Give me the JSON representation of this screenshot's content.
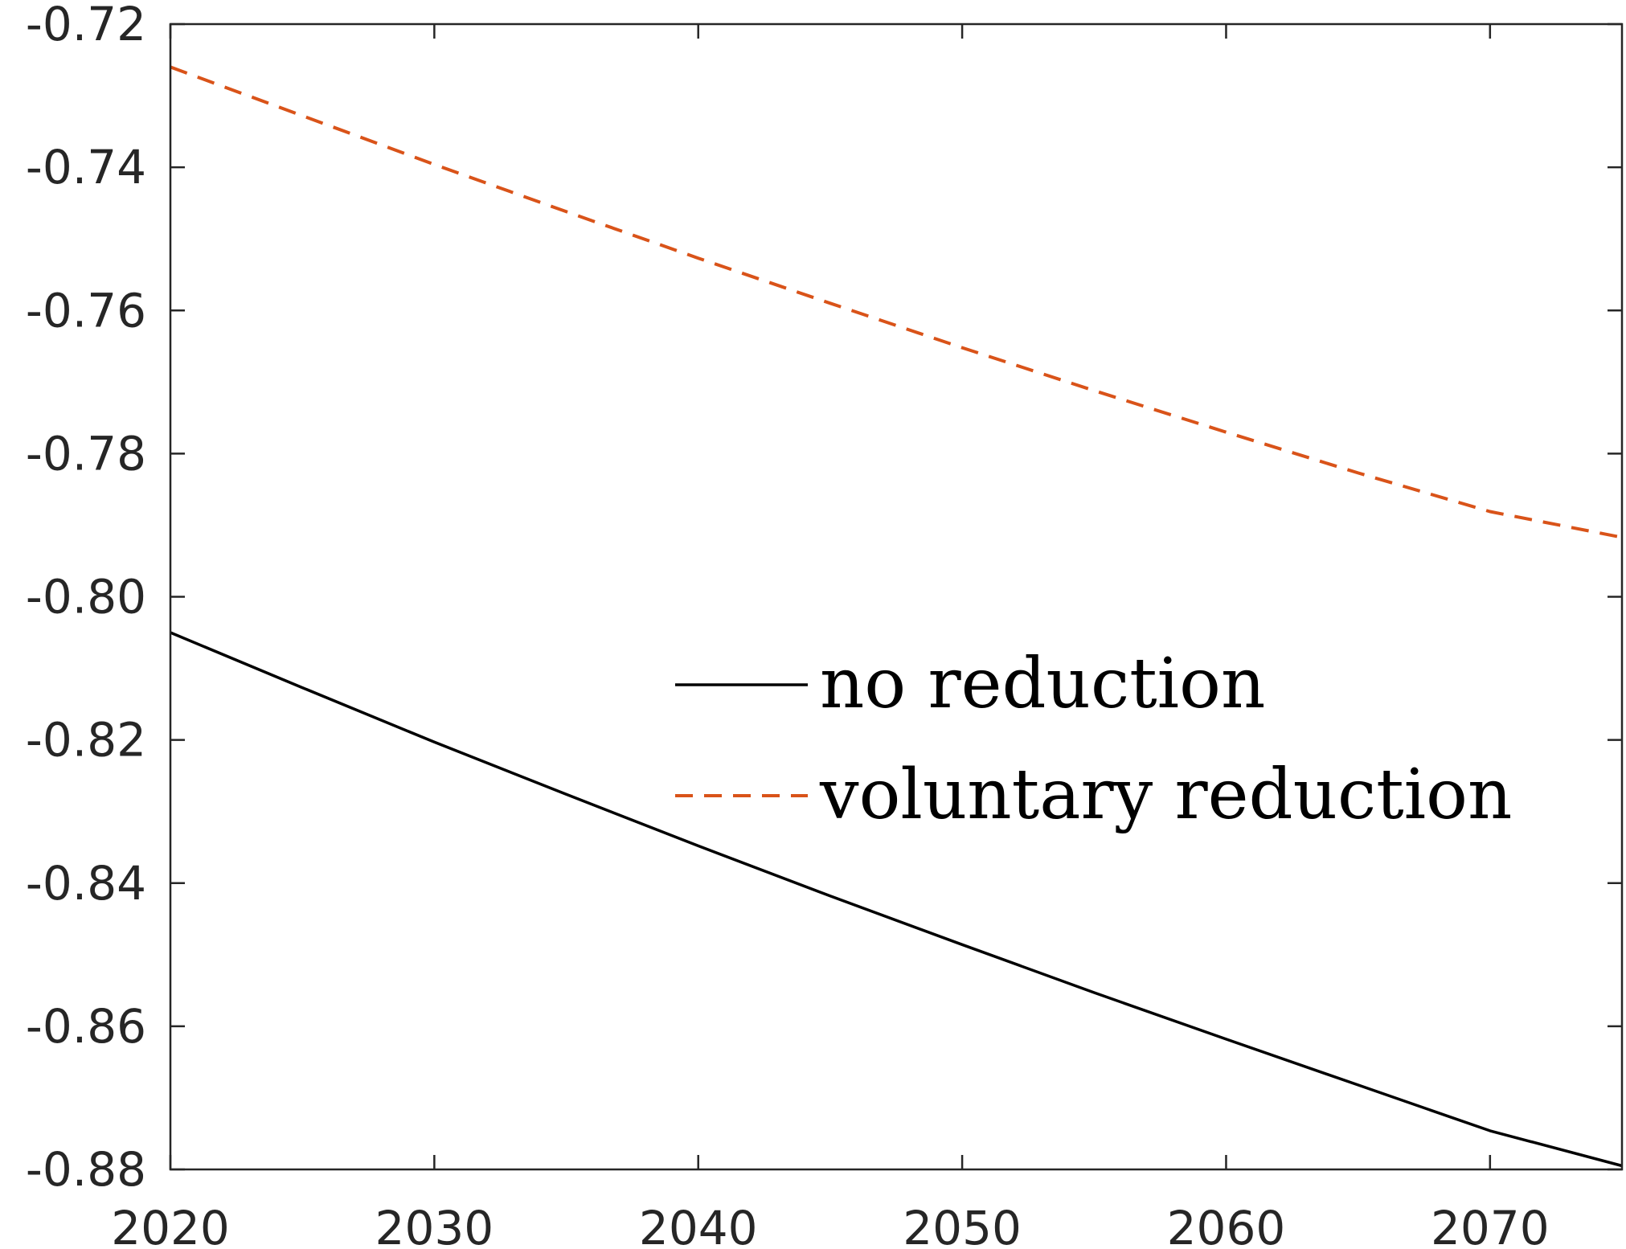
{
  "chart_data": {
    "type": "line",
    "title": "",
    "xlabel": "",
    "ylabel": "",
    "xlim": [
      2020,
      2075
    ],
    "ylim": [
      -0.88,
      -0.72
    ],
    "xticks": [
      2020,
      2030,
      2040,
      2050,
      2060,
      2070
    ],
    "xtick_labels": [
      "2020",
      "2030",
      "2040",
      "2050",
      "2060",
      "2070"
    ],
    "yticks": [
      -0.72,
      -0.74,
      -0.76,
      -0.78,
      -0.8,
      -0.82,
      -0.84,
      -0.86,
      -0.88
    ],
    "ytick_labels": [
      "-0.72",
      "-0.74",
      "-0.76",
      "-0.78",
      "-0.80",
      "-0.82",
      "-0.84",
      "-0.86",
      "-0.88"
    ],
    "grid": false,
    "legend_position": "center-right",
    "series": [
      {
        "name": "no reduction",
        "color": "#000000",
        "style": "solid",
        "x": [
          2020,
          2025,
          2030,
          2035,
          2040,
          2045,
          2050,
          2055,
          2060,
          2065,
          2070,
          2075
        ],
        "y": [
          -0.805,
          -0.8127,
          -0.8203,
          -0.8276,
          -0.8348,
          -0.8418,
          -0.8486,
          -0.8553,
          -0.8618,
          -0.8682,
          -0.8746,
          -0.8795
        ]
      },
      {
        "name": "voluntary reduction",
        "color": "#D95319",
        "style": "dashed",
        "x": [
          2020,
          2025,
          2030,
          2035,
          2040,
          2045,
          2050,
          2055,
          2060,
          2065,
          2070,
          2075
        ],
        "y": [
          -0.726,
          -0.7328,
          -0.7396,
          -0.7462,
          -0.7527,
          -0.759,
          -0.7652,
          -0.7712,
          -0.777,
          -0.7827,
          -0.7881,
          -0.7917
        ]
      }
    ]
  }
}
